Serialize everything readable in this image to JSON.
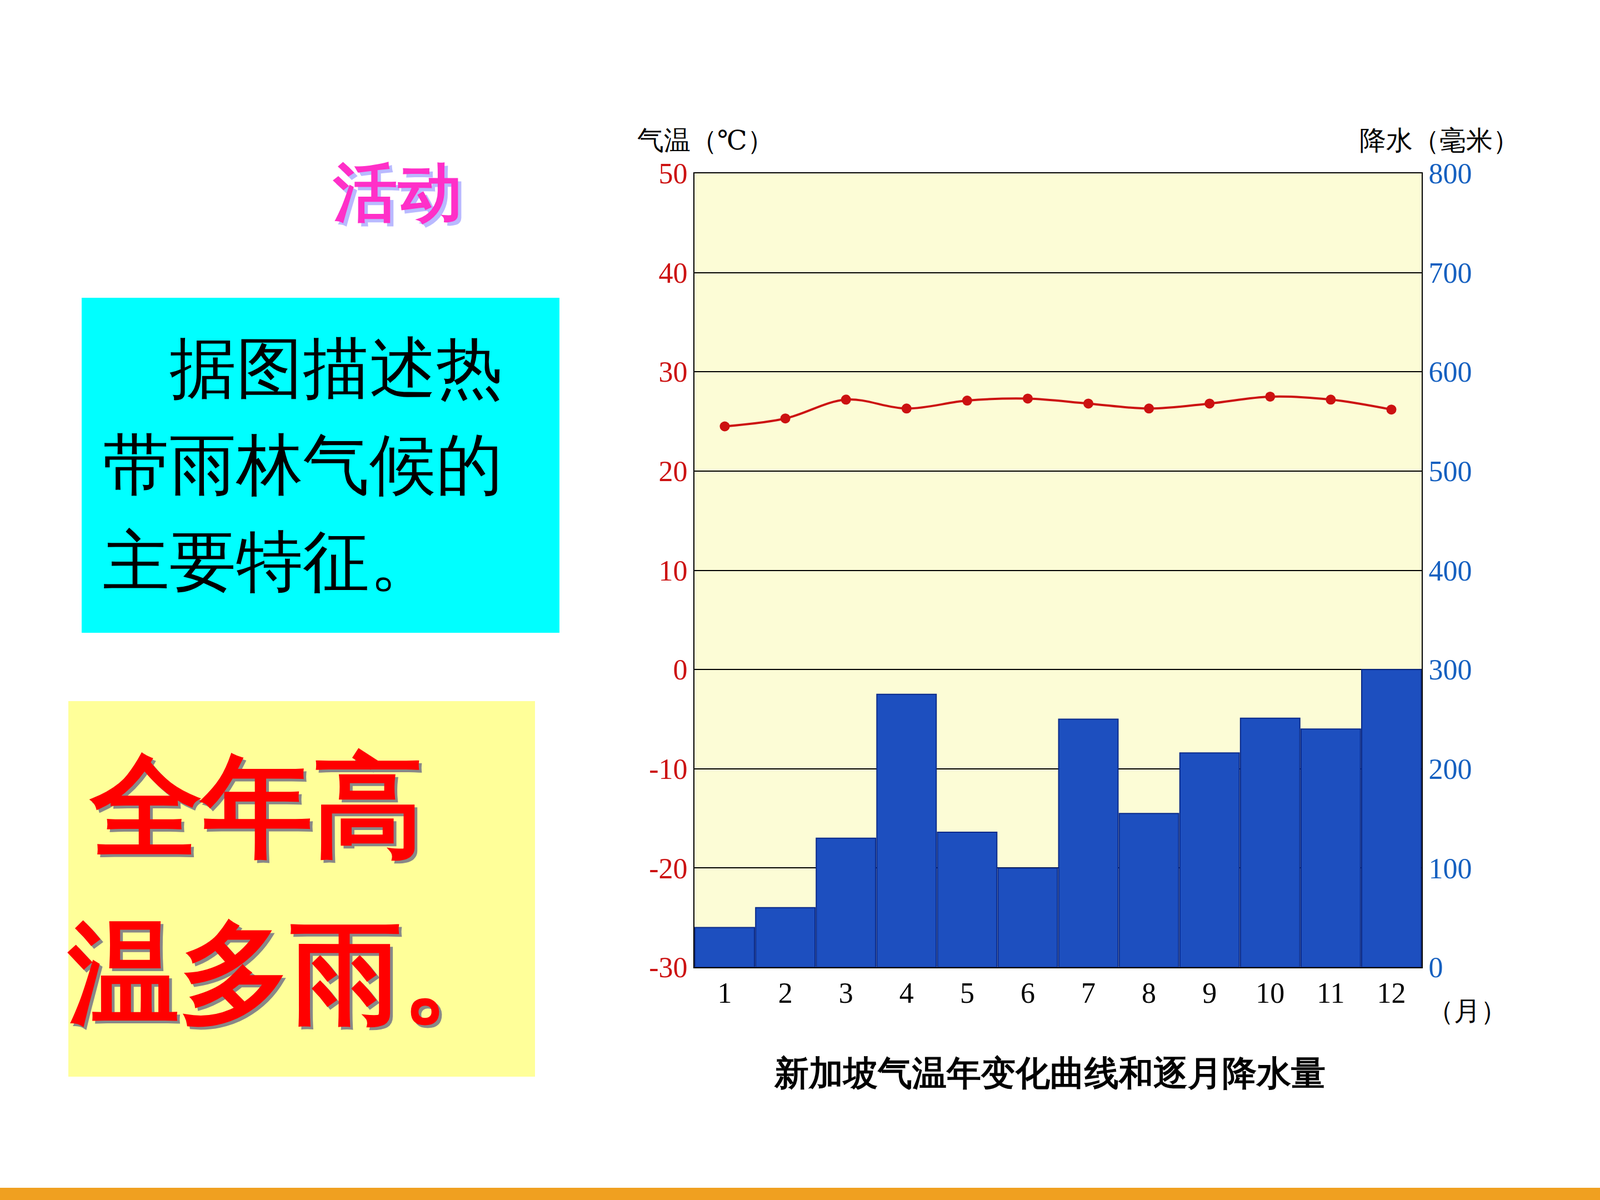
{
  "slide": {
    "heading": "活动",
    "question": "据图描述热带雨林气候的主要特征。",
    "answer": "全年高温多雨。"
  },
  "chart_data": {
    "type": "bar",
    "title": "新加坡气温年变化曲线和逐月降水量",
    "xlabel": "（月）",
    "ylabel": "气温（℃）",
    "y2label": "降水（毫米）",
    "categories": [
      "1",
      "2",
      "3",
      "4",
      "5",
      "6",
      "7",
      "8",
      "9",
      "10",
      "11",
      "12"
    ],
    "series": [
      {
        "type": "bar",
        "axis": "y2",
        "color": "#1d4fbf",
        "values": [
          40,
          60,
          130,
          275,
          136,
          100,
          250,
          155,
          216,
          251,
          240,
          300
        ]
      },
      {
        "type": "line",
        "axis": "y",
        "color": "#cc1111",
        "marker": "circle",
        "values": [
          24.5,
          25.3,
          27.2,
          26.3,
          27.1,
          27.3,
          26.8,
          26.3,
          26.8,
          27.5,
          27.2,
          26.2
        ]
      }
    ],
    "ylim": [
      -30,
      50
    ],
    "yticks": [
      -30,
      -20,
      -10,
      0,
      10,
      20,
      30,
      40,
      50
    ],
    "y2lim": [
      0,
      800
    ],
    "y2ticks": [
      0,
      100,
      200,
      300,
      400,
      500,
      600,
      700,
      800
    ],
    "grid": true
  }
}
